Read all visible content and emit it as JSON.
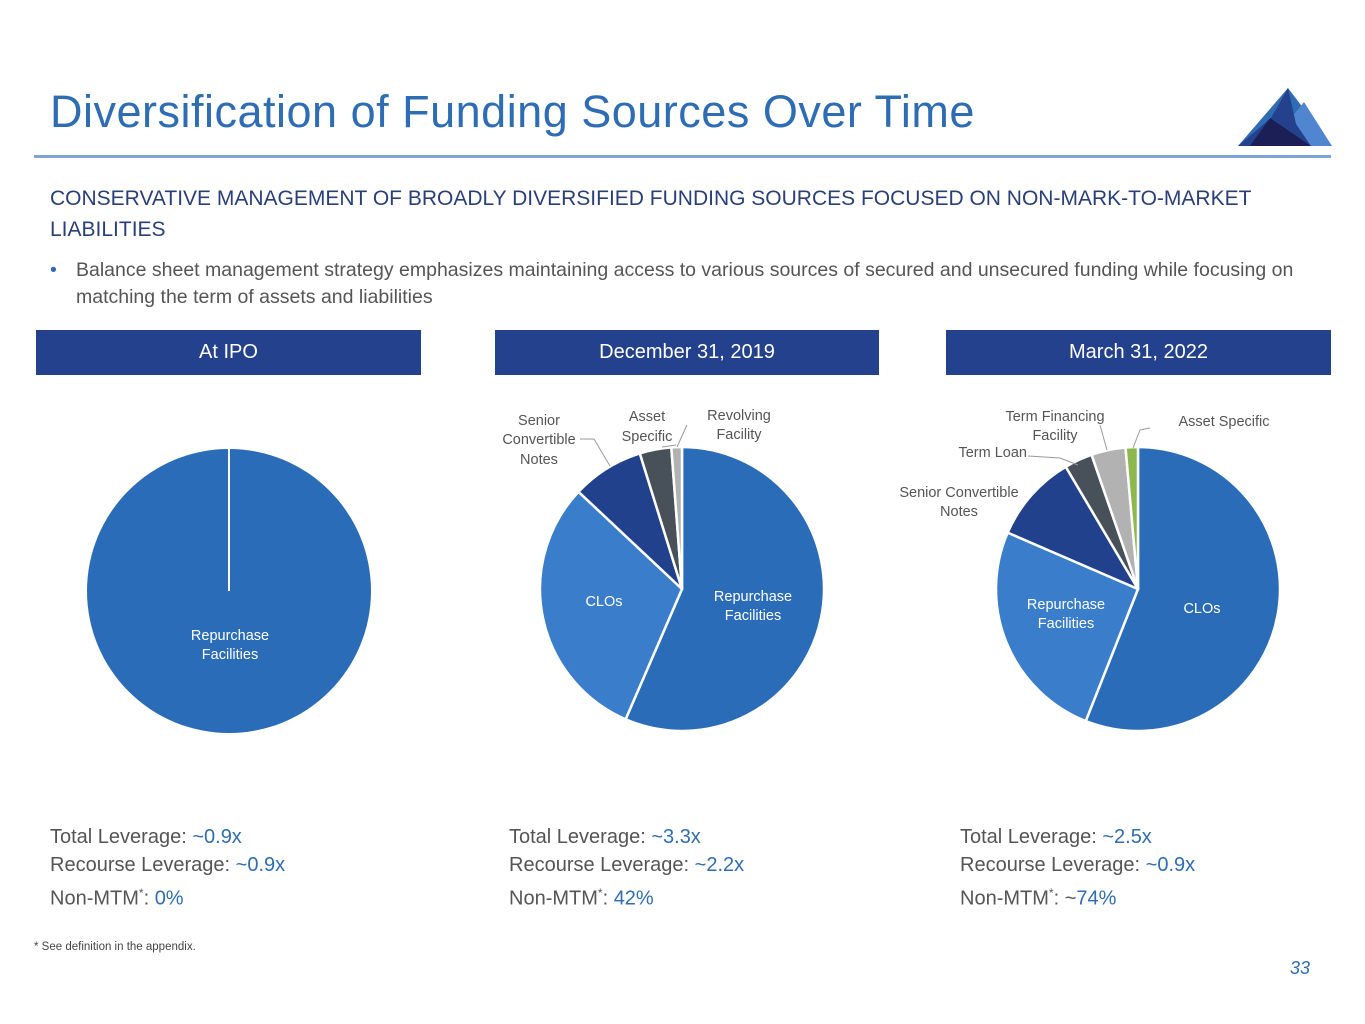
{
  "title": "Diversification of Funding Sources Over Time",
  "subheading": "CONSERVATIVE MANAGEMENT OF BROADLY DIVERSIFIED FUNDING SOURCES FOCUSED ON NON-MARK-TO-MARKET LIABILITIES",
  "bullet": "Balance sheet management strategy emphasizes maintaining access to various sources of secured and unsecured funding while focusing on matching the term of assets and liabilities",
  "bullet_marker": "•",
  "colors": {
    "title": "#2e6db4",
    "header_bg": "#24418d",
    "repurchase": "#2b6cb8",
    "clos_light": "#3a7dcb",
    "senior_convertible": "#22418c",
    "dark_gray": "#48515a",
    "light_gray": "#b2b2b2",
    "green": "#8cb84e"
  },
  "columns": [
    {
      "header": "At IPO",
      "stats": {
        "total_label": "Total Leverage: ",
        "total_value": "~0.9x",
        "recourse_label": "Recourse Leverage: ",
        "recourse_value": "~0.9x",
        "nonmtm_label": "Non-MTM",
        "nonmtm_star": "*",
        "nonmtm_sep": ": ",
        "nonmtm_prefix": "",
        "nonmtm_value": "0%"
      }
    },
    {
      "header": "December 31, 2019",
      "stats": {
        "total_label": "Total Leverage: ",
        "total_value": "~3.3x",
        "recourse_label": "Recourse Leverage: ",
        "recourse_value": "~2.2x",
        "nonmtm_label": "Non-MTM",
        "nonmtm_star": "*",
        "nonmtm_sep": ": ",
        "nonmtm_prefix": "",
        "nonmtm_value": "42%"
      }
    },
    {
      "header": "March 31, 2022",
      "stats": {
        "total_label": "Total Leverage: ",
        "total_value": "~2.5x",
        "recourse_label": "Recourse Leverage: ",
        "recourse_value": "~0.9x",
        "nonmtm_label": "Non-MTM",
        "nonmtm_star": "*",
        "nonmtm_sep": ": ",
        "nonmtm_prefix": "~",
        "nonmtm_value": "74%"
      }
    }
  ],
  "chart_data": [
    {
      "type": "pie",
      "title": "At IPO",
      "slices": [
        {
          "label": "Repurchase Facilities",
          "value": 100,
          "color": "#2b6cb8"
        }
      ]
    },
    {
      "type": "pie",
      "title": "December 31, 2019",
      "slices": [
        {
          "label": "Repurchase Facilities",
          "value": 56.5,
          "color": "#2b6cb8"
        },
        {
          "label": "CLOs",
          "value": 30.5,
          "color": "#3a7dcb"
        },
        {
          "label": "Senior Convertible Notes",
          "value": 8.2,
          "color": "#22418c"
        },
        {
          "label": "Asset Specific",
          "value": 3.6,
          "color": "#48515a"
        },
        {
          "label": "Revolving Facility",
          "value": 1.2,
          "color": "#b2b2b2"
        }
      ]
    },
    {
      "type": "pie",
      "title": "March 31, 2022",
      "slices": [
        {
          "label": "CLOs",
          "value": 56.0,
          "color": "#2b6cb8"
        },
        {
          "label": "Repurchase Facilities",
          "value": 25.5,
          "color": "#3a7dcb"
        },
        {
          "label": "Senior Convertible Notes",
          "value": 10.0,
          "color": "#22418c"
        },
        {
          "label": "Term Loan",
          "value": 3.2,
          "color": "#48515a"
        },
        {
          "label": "Term Financing Facility",
          "value": 3.9,
          "color": "#b2b2b2"
        },
        {
          "label": "Asset Specific",
          "value": 1.4,
          "color": "#8cb84e"
        }
      ]
    }
  ],
  "pie_labels": {
    "p1": {
      "repurchase_1": "Repurchase",
      "repurchase_2": "Facilities"
    },
    "p2": {
      "repurchase_1": "Repurchase",
      "repurchase_2": "Facilities",
      "clos": "CLOs",
      "scn_1": "Senior",
      "scn_2": "Convertible",
      "scn_3": "Notes",
      "asset_1": "Asset",
      "asset_2": "Specific",
      "rev_1": "Revolving",
      "rev_2": "Facility"
    },
    "p3": {
      "clos": "CLOs",
      "repurchase_1": "Repurchase",
      "repurchase_2": "Facilities",
      "scn_1": "Senior Convertible",
      "scn_2": "Notes",
      "term_loan": "Term Loan",
      "tff_1": "Term Financing",
      "tff_2": "Facility",
      "asset": "Asset Specific"
    }
  },
  "footnote": "* See definition in the appendix.",
  "page_number": "33"
}
